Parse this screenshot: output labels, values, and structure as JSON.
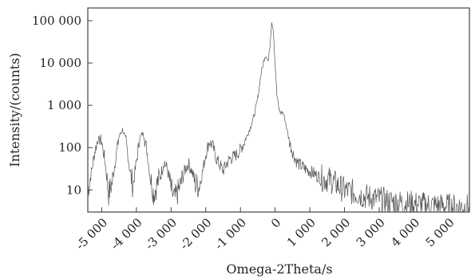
{
  "chart_data": {
    "type": "line",
    "title": "",
    "xlabel": "Omega-2Theta/s",
    "ylabel": "Intensity/(counts)",
    "x_scale": "linear",
    "y_scale": "log",
    "xlim": [
      -5400,
      5600
    ],
    "ylim": [
      3,
      200000
    ],
    "grid": false,
    "legend": "none",
    "line_color": "#555555",
    "x_ticks": [
      {
        "value": -5000,
        "label": "-5 000"
      },
      {
        "value": -4000,
        "label": "-4 000"
      },
      {
        "value": -3000,
        "label": "-3 000"
      },
      {
        "value": -2000,
        "label": "-2 000"
      },
      {
        "value": -1000,
        "label": "-1 000"
      },
      {
        "value": 0,
        "label": "0"
      },
      {
        "value": 1000,
        "label": "1 000"
      },
      {
        "value": 2000,
        "label": "2 000"
      },
      {
        "value": 3000,
        "label": "3 000"
      },
      {
        "value": 4000,
        "label": "4 000"
      },
      {
        "value": 5000,
        "label": "5 000"
      }
    ],
    "y_ticks": [
      {
        "value": 10,
        "label": "10"
      },
      {
        "value": 100,
        "label": "100"
      },
      {
        "value": 1000,
        "label": "1 000"
      },
      {
        "value": 10000,
        "label": "10 000"
      },
      {
        "value": 100000,
        "label": "100 000"
      }
    ],
    "series": [
      {
        "x": [
          -5400,
          -5300,
          -5200,
          -5100,
          -5000,
          -4900,
          -4800,
          -4700,
          -4600,
          -4500,
          -4400,
          -4300,
          -4200,
          -4100,
          -4000,
          -3900,
          -3800,
          -3700,
          -3600,
          -3500,
          -3400,
          -3300,
          -3200,
          -3100,
          -3000,
          -2900,
          -2800,
          -2700,
          -2600,
          -2500,
          -2400,
          -2300,
          -2200,
          -2100,
          -2000,
          -1900,
          -1800,
          -1700,
          -1600,
          -1500,
          -1400,
          -1300,
          -1200,
          -1100,
          -1000,
          -900,
          -800,
          -700,
          -600,
          -500,
          -400,
          -300,
          -250,
          -200,
          -150,
          -100,
          -50,
          0,
          50,
          100,
          150,
          200,
          250,
          300,
          350,
          400,
          500,
          600,
          700,
          800,
          900,
          1000,
          1100,
          1200,
          1300,
          1400,
          1500,
          1600,
          1700,
          1800,
          1900,
          2000,
          2200,
          2400,
          2600,
          2800,
          3000,
          3200,
          3400,
          3600,
          3800,
          4000,
          4200,
          4400,
          4600,
          4800,
          5000,
          5200,
          5400,
          5600
        ],
        "y": [
          10,
          25,
          80,
          170,
          140,
          45,
          8,
          15,
          55,
          180,
          270,
          150,
          35,
          12,
          45,
          180,
          220,
          90,
          20,
          8,
          14,
          22,
          48,
          30,
          10,
          6,
          9,
          15,
          30,
          42,
          28,
          14,
          12,
          25,
          70,
          140,
          110,
          55,
          40,
          28,
          42,
          55,
          60,
          70,
          90,
          130,
          200,
          320,
          600,
          1500,
          6000,
          14000,
          15000,
          11000,
          25000,
          100000,
          60000,
          9000,
          1800,
          900,
          650,
          700,
          600,
          400,
          250,
          150,
          80,
          50,
          40,
          35,
          30,
          28,
          25,
          22,
          20,
          18,
          18,
          17,
          15,
          13,
          11,
          10,
          9,
          8,
          7,
          6.5,
          6,
          5.5,
          5.2,
          5,
          4.8,
          4.7,
          4.5,
          4.4,
          4.3,
          4.2,
          4.1,
          4,
          4,
          4
        ]
      }
    ]
  }
}
